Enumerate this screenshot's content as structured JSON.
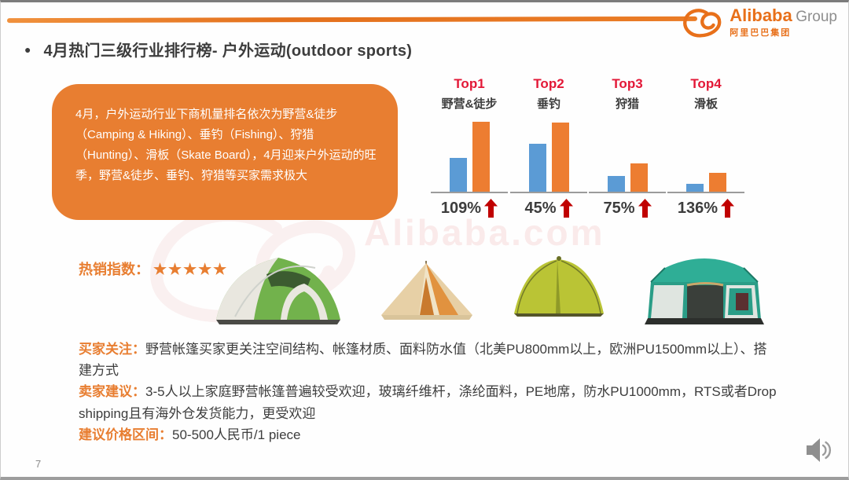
{
  "slide": {
    "bullet": "●",
    "title": "4月热门三级行业排行榜- 户外运动(outdoor sports)",
    "page_number": "7"
  },
  "logo": {
    "name": "Alibaba",
    "suffix": "Group",
    "chinese": "阿里巴巴集团"
  },
  "summary_box": {
    "text": "4月，户外运动行业下商机量排名依次为野营&徒步（Camping & Hiking）、垂钓（Fishing）、狩猎（Hunting）、滑板（Skate Board），4月迎来户外运动的旺季，野营&徒步、垂钓、狩猎等买家需求极大"
  },
  "chart_data": {
    "type": "bar",
    "groups": [
      {
        "rank": "Top1",
        "category": "野营&徒步",
        "growth_label": "109%",
        "values": {
          "previous": 43,
          "current": 89
        }
      },
      {
        "rank": "Top2",
        "category": "垂钓",
        "growth_label": "45%",
        "values": {
          "previous": 61,
          "current": 88
        }
      },
      {
        "rank": "Top3",
        "category": "狩猎",
        "growth_label": "75%",
        "values": {
          "previous": 20,
          "current": 36
        }
      },
      {
        "rank": "Top4",
        "category": "滑板",
        "growth_label": "136%",
        "values": {
          "previous": 10,
          "current": 24
        }
      }
    ],
    "series_colors": {
      "previous": "#5B9BD5",
      "current": "#ED7D31"
    },
    "values_note": "relative bar heights estimated from pixels; axis unlabeled",
    "grid": "off",
    "legend_position": "none"
  },
  "hot_index": {
    "label": "热销指数：",
    "stars": "★★★★★"
  },
  "details": {
    "buyer_focus_label": "买家关注：",
    "buyer_focus": "野营帐篷买家更关注空间结构、帐篷材质、面料防水值（北美PU800mm以上，欧洲PU1500mm以上）、搭建方式",
    "seller_advice_label": "卖家建议：",
    "seller_advice": "3-5人以上家庭野营帐篷普遍较受欢迎，玻璃纤维杆，涤纶面料，PE地席，防水PU1000mm，RTS或者Drop shipping且有海外仓发货能力，更受欢迎",
    "price_range_label": "建议价格区间：",
    "price_range": "50-500人民币/1 piece"
  },
  "watermark": {
    "text": "Alibaba.com"
  },
  "colors": {
    "accent_orange": "#E87E31",
    "bar_blue": "#5B9BD5",
    "bar_orange": "#ED7D31",
    "rank_red": "#E31837",
    "arrow_red": "#C00000",
    "text_dark": "#3D3D3D"
  }
}
